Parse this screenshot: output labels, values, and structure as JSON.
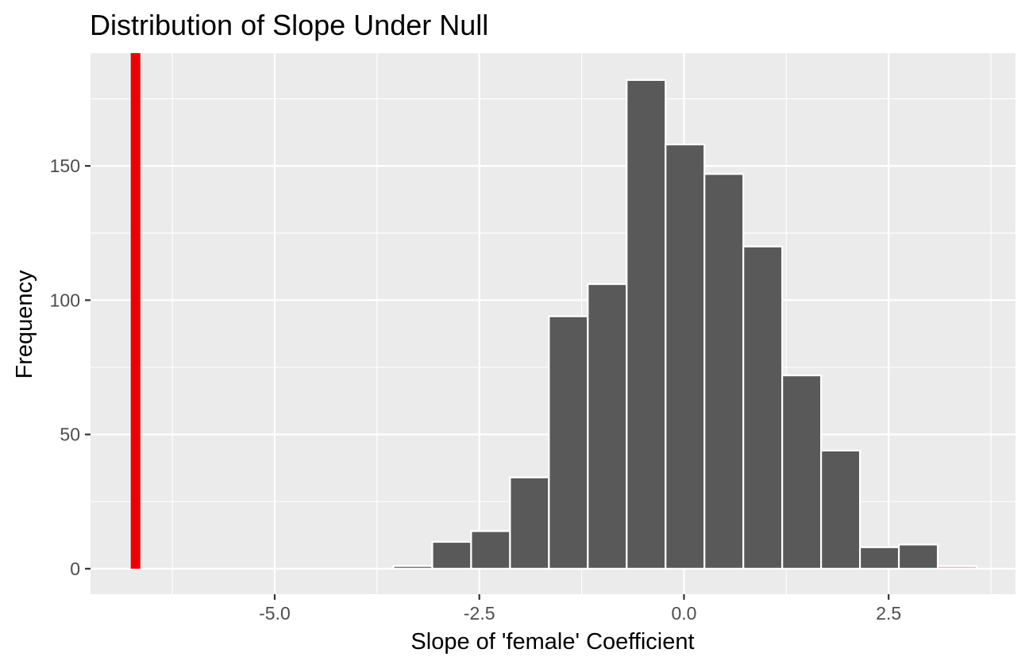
{
  "chart_data": {
    "type": "bar",
    "title": "Distribution of Slope Under Null",
    "xlabel": "Slope of 'female' Coefficient",
    "ylabel": "Frequency",
    "xlim": [
      -7.25,
      4.05
    ],
    "ylim": [
      -9.5,
      192
    ],
    "x_ticks": [
      -5.0,
      -2.5,
      0.0,
      2.5
    ],
    "x_tick_labels": [
      "-5.0",
      "-2.5",
      "0.0",
      "2.5"
    ],
    "x_minor_ticks": [
      -6.25,
      -3.75,
      -1.25,
      1.25,
      3.75
    ],
    "y_ticks": [
      0,
      50,
      100,
      150
    ],
    "y_tick_labels": [
      "0",
      "50",
      "100",
      "150"
    ],
    "y_minor_ticks": [
      25,
      75,
      125,
      175
    ],
    "grid": true,
    "background_color": "#ebebeb",
    "bar_fill": "#595959",
    "bar_outline": "#ffffff",
    "bins": [
      {
        "x0": -3.55,
        "x1": -3.075,
        "count": 1
      },
      {
        "x0": -3.075,
        "x1": -2.6,
        "count": 10
      },
      {
        "x0": -2.6,
        "x1": -2.125,
        "count": 14
      },
      {
        "x0": -2.125,
        "x1": -1.65,
        "count": 34
      },
      {
        "x0": -1.65,
        "x1": -1.175,
        "count": 94
      },
      {
        "x0": -1.175,
        "x1": -0.7,
        "count": 106
      },
      {
        "x0": -0.7,
        "x1": -0.225,
        "count": 182
      },
      {
        "x0": -0.225,
        "x1": 0.25,
        "count": 158
      },
      {
        "x0": 0.25,
        "x1": 0.725,
        "count": 147
      },
      {
        "x0": 0.725,
        "x1": 1.2,
        "count": 120
      },
      {
        "x0": 1.2,
        "x1": 1.675,
        "count": 72
      },
      {
        "x0": 1.675,
        "x1": 2.15,
        "count": 44
      },
      {
        "x0": 2.15,
        "x1": 2.625,
        "count": 8
      },
      {
        "x0": 2.625,
        "x1": 3.1,
        "count": 9
      },
      {
        "x0": 3.1,
        "x1": 3.575,
        "count": 1,
        "shaded": true
      }
    ],
    "shade_color": "#f4a6b0",
    "observed_line": {
      "x": -6.7,
      "color": "#ee0000"
    }
  }
}
